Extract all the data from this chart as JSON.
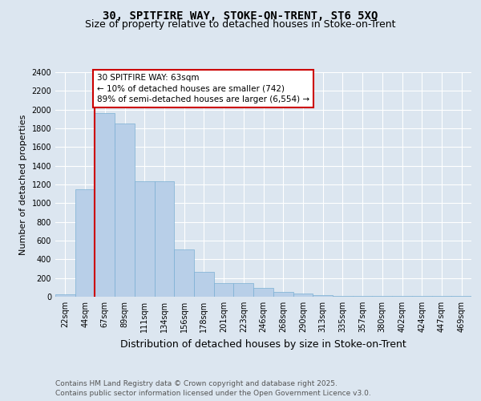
{
  "title_line1": "30, SPITFIRE WAY, STOKE-ON-TRENT, ST6 5XQ",
  "title_line2": "Size of property relative to detached houses in Stoke-on-Trent",
  "xlabel": "Distribution of detached houses by size in Stoke-on-Trent",
  "ylabel": "Number of detached properties",
  "categories": [
    "22sqm",
    "44sqm",
    "67sqm",
    "89sqm",
    "111sqm",
    "134sqm",
    "156sqm",
    "178sqm",
    "201sqm",
    "223sqm",
    "246sqm",
    "268sqm",
    "290sqm",
    "313sqm",
    "335sqm",
    "357sqm",
    "380sqm",
    "402sqm",
    "424sqm",
    "447sqm",
    "469sqm"
  ],
  "values": [
    25,
    1150,
    1960,
    1850,
    1230,
    1230,
    510,
    270,
    150,
    150,
    95,
    50,
    35,
    15,
    10,
    10,
    8,
    5,
    5,
    5,
    8
  ],
  "bar_color": "#b8cfe8",
  "bar_edge_color": "#7aafd4",
  "vline_x_index": 2,
  "vline_color": "#cc0000",
  "annotation_line1": "30 SPITFIRE WAY: 63sqm",
  "annotation_line2": "← 10% of detached houses are smaller (742)",
  "annotation_line3": "89% of semi-detached houses are larger (6,554) →",
  "annotation_box_color": "#ffffff",
  "annotation_box_edge_color": "#cc0000",
  "ylim": [
    0,
    2400
  ],
  "yticks": [
    0,
    200,
    400,
    600,
    800,
    1000,
    1200,
    1400,
    1600,
    1800,
    2000,
    2200,
    2400
  ],
  "background_color": "#dce6f0",
  "plot_bg_color": "#dce6f0",
  "grid_color": "#ffffff",
  "footer_text": "Contains HM Land Registry data © Crown copyright and database right 2025.\nContains public sector information licensed under the Open Government Licence v3.0.",
  "title_fontsize": 10,
  "subtitle_fontsize": 9,
  "tick_fontsize": 7,
  "ylabel_fontsize": 8,
  "xlabel_fontsize": 9,
  "annotation_fontsize": 7.5,
  "footer_fontsize": 6.5
}
